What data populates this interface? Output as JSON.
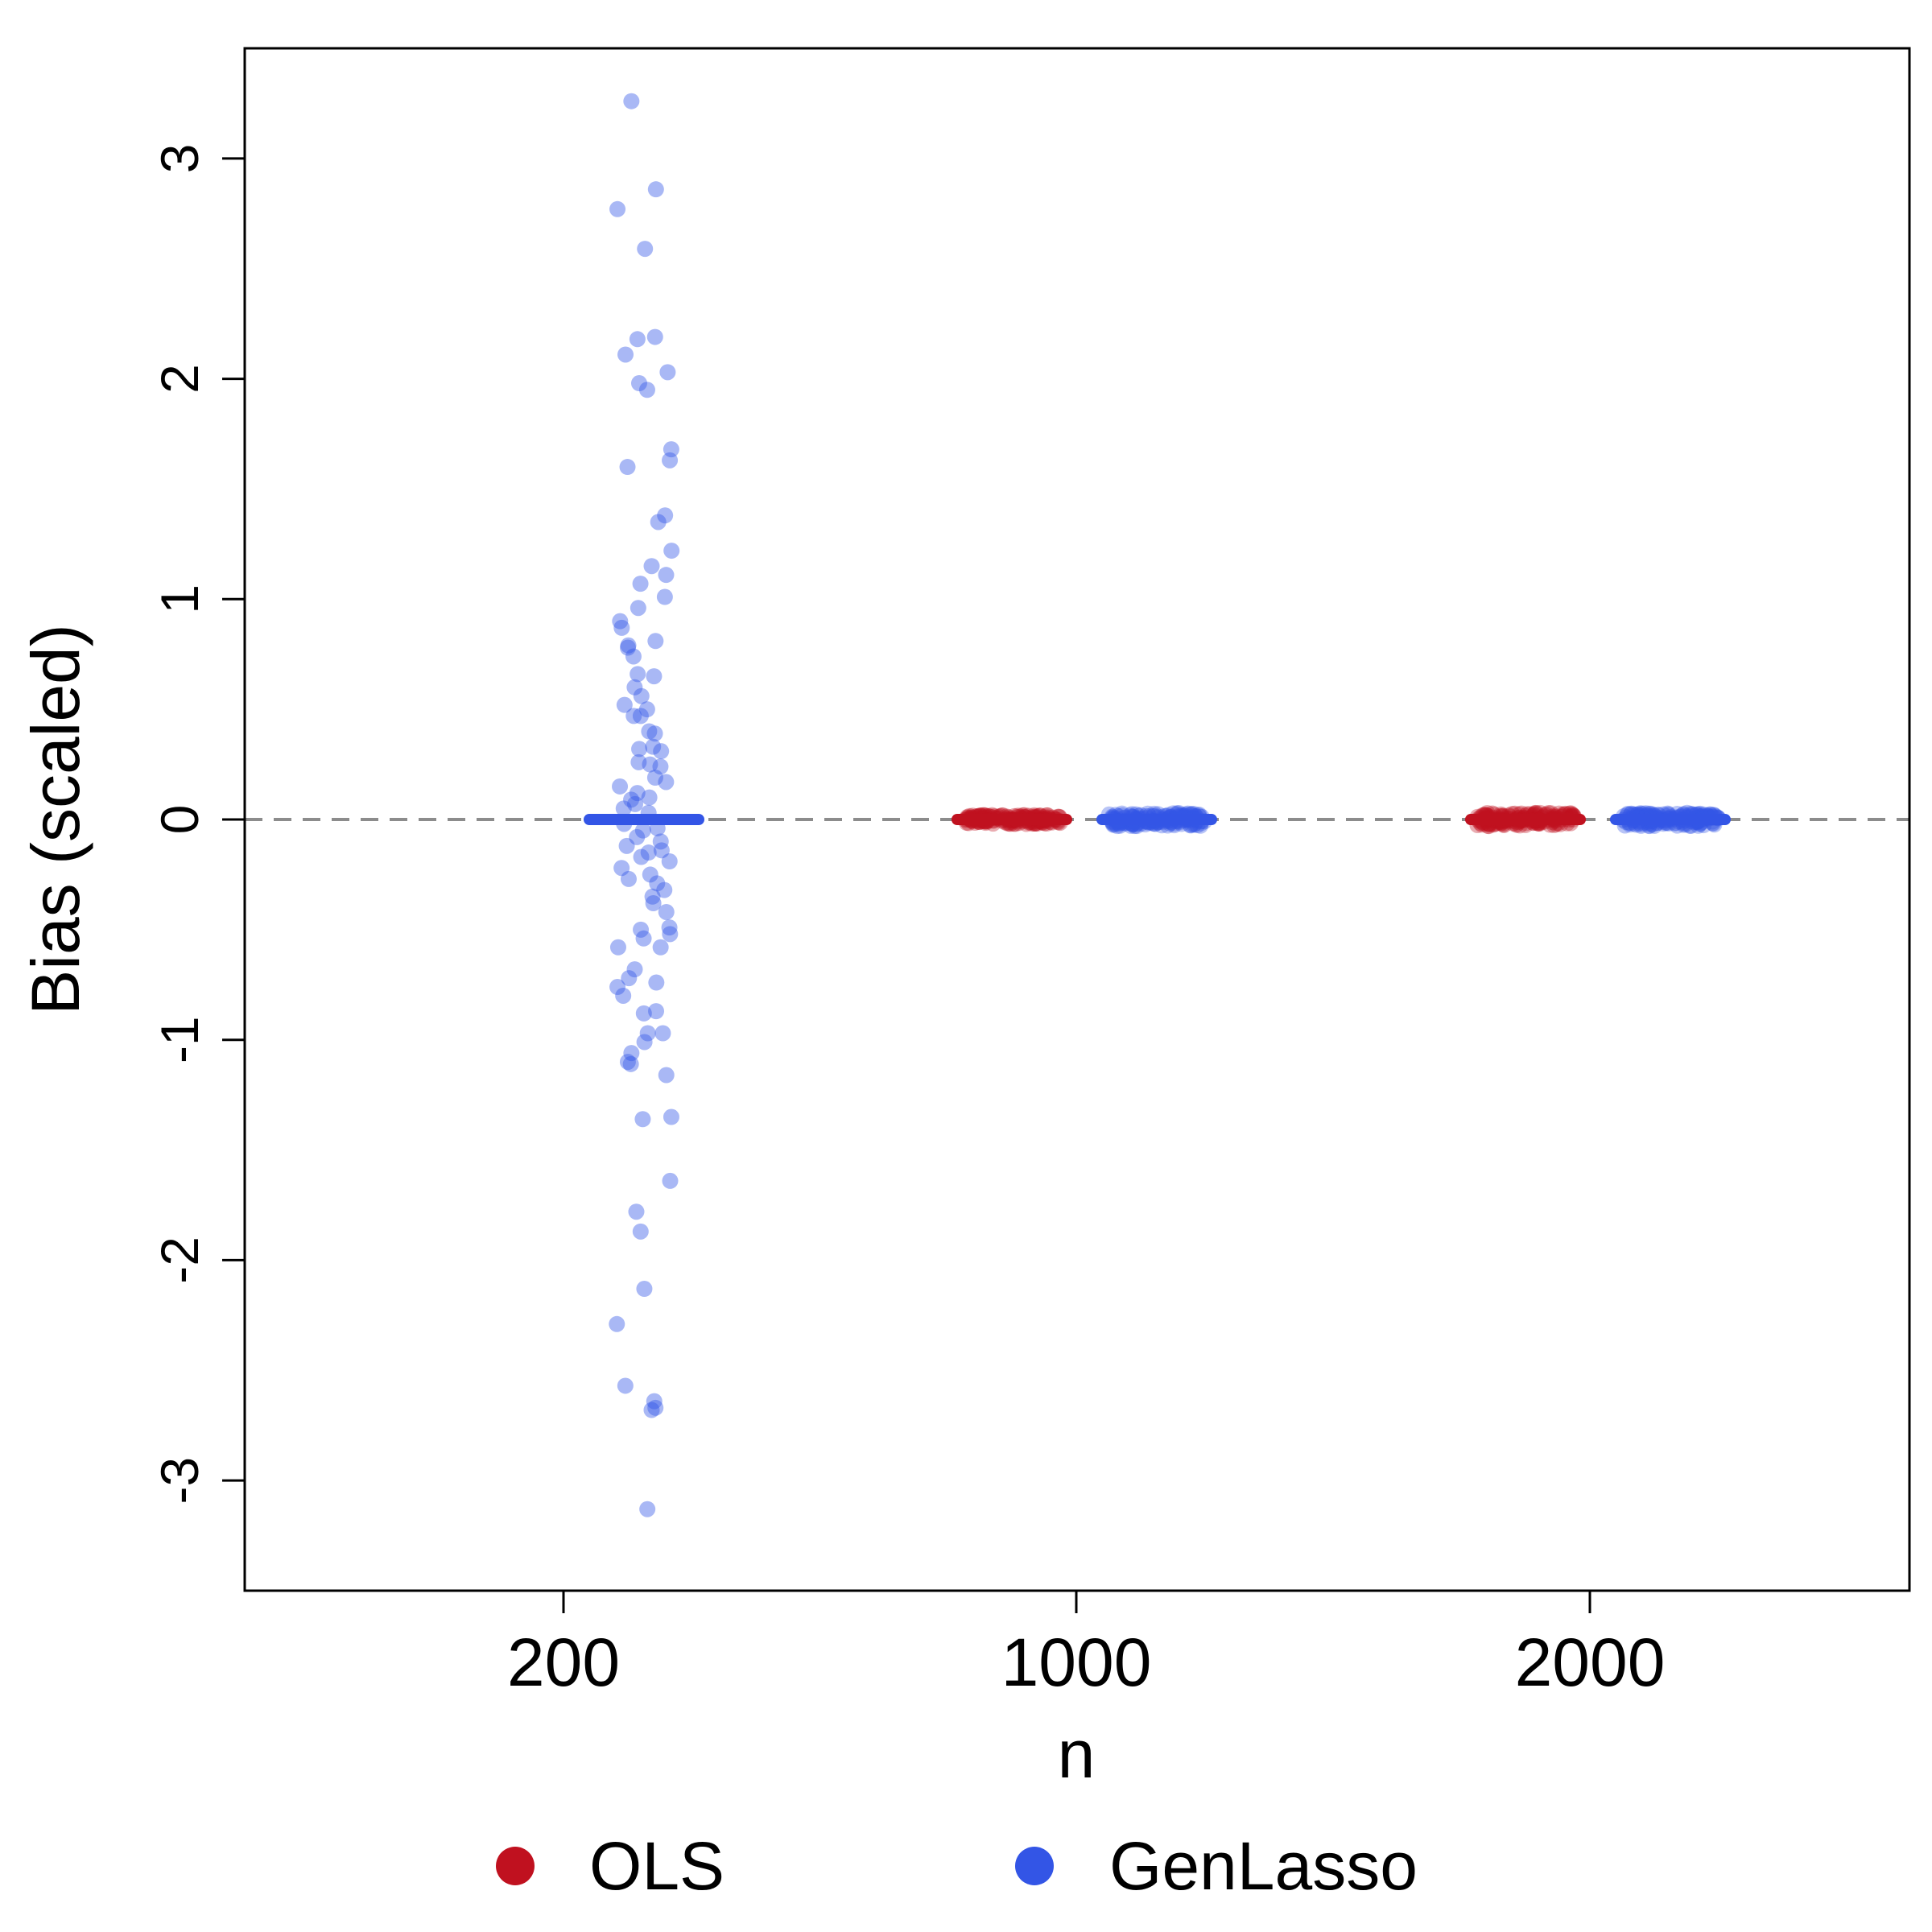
{
  "chart_data": {
    "type": "scatter",
    "xlabel": "n",
    "ylabel": "Bias (scaled)",
    "ylim": [
      -3.5,
      3.5
    ],
    "yticks": [
      "3",
      "2",
      "1",
      "0",
      "-1",
      "-2",
      "-3"
    ],
    "ytick_values": [
      3,
      2,
      1,
      0,
      -1,
      -2,
      -3
    ],
    "categories": [
      "200",
      "1000",
      "2000"
    ],
    "reference_line": {
      "y": 0,
      "style": "dashed",
      "color": "#8c8c8c"
    },
    "grid": false,
    "legend_position": "bottom",
    "series": [
      {
        "name": "OLS",
        "color": "#c0111f",
        "groups": [
          {
            "category": "200",
            "mean": 0.0,
            "values": []
          },
          {
            "category": "1000",
            "mean": 0.0,
            "spread": 0.02
          },
          {
            "category": "2000",
            "mean": 0.0,
            "spread": 0.03
          }
        ]
      },
      {
        "name": "GenLasso",
        "color": "#3355e6",
        "groups": [
          {
            "category": "200",
            "mean": 0.0,
            "values": [
              3.26,
              2.86,
              2.77,
              2.59,
              2.19,
              2.18,
              2.11,
              2.03,
              1.98,
              1.95,
              1.68,
              1.63,
              1.6,
              1.38,
              1.35,
              1.22,
              1.15,
              1.11,
              1.07,
              1.01,
              0.96,
              0.9,
              0.87,
              0.81,
              0.79,
              0.78,
              0.74,
              0.66,
              0.65,
              0.6,
              0.56,
              0.52,
              0.5,
              0.47,
              0.47,
              0.4,
              0.39,
              0.33,
              0.32,
              0.31,
              0.26,
              0.25,
              0.24,
              0.19,
              0.17,
              0.15,
              0.12,
              0.1,
              0.09,
              0.07,
              0.05,
              0.03,
              -0.02,
              -0.04,
              -0.05,
              -0.08,
              -0.1,
              -0.12,
              -0.14,
              -0.15,
              -0.17,
              -0.19,
              -0.22,
              -0.25,
              -0.27,
              -0.29,
              -0.32,
              -0.35,
              -0.38,
              -0.42,
              -0.49,
              -0.5,
              -0.52,
              -0.54,
              -0.58,
              -0.58,
              -0.68,
              -0.72,
              -0.74,
              -0.76,
              -0.8,
              -0.87,
              -0.88,
              -0.97,
              -0.97,
              -1.01,
              -1.06,
              -1.1,
              -1.11,
              -1.16,
              -1.35,
              -1.36,
              -1.64,
              -1.78,
              -1.87,
              -2.13,
              -2.29,
              -2.57,
              -2.64,
              -2.67,
              -2.68,
              -3.13
            ]
          },
          {
            "category": "1000",
            "mean": 0.0,
            "spread": 0.03
          },
          {
            "category": "2000",
            "mean": 0.0,
            "spread": 0.03
          }
        ]
      }
    ]
  }
}
